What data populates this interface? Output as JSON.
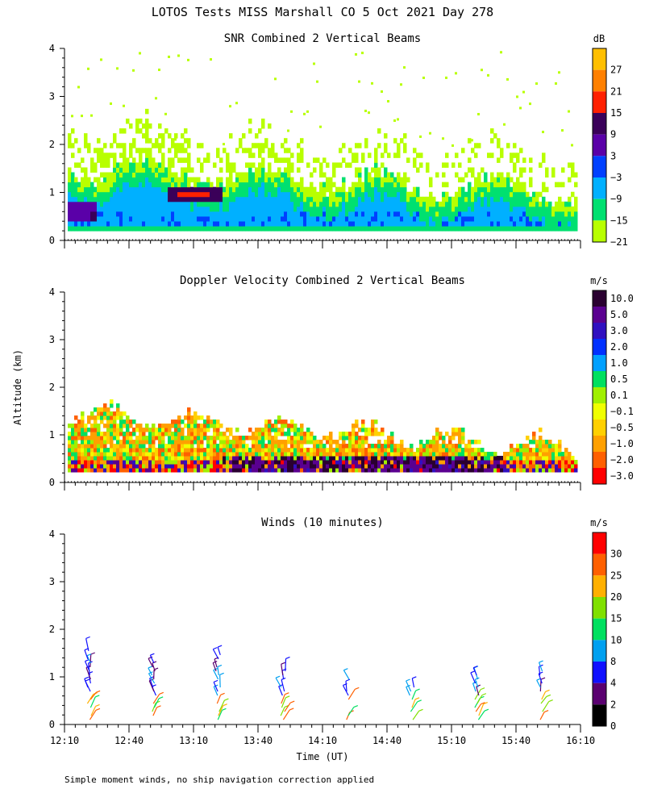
{
  "figure_title": "LOTOS Tests MISS Marshall CO   5 Oct 2021 Day 278",
  "footnote": "Simple moment winds, no ship navigation correction applied",
  "chart_data": [
    {
      "type": "heatmap",
      "title": "SNR Combined 2 Vertical Beams",
      "ylabel": "Altitude (km)",
      "ylim": [
        0,
        4
      ],
      "yticks": [
        "0",
        "1",
        "2",
        "3",
        "4"
      ],
      "colorbar": {
        "unit": "dB",
        "labels": [
          "27",
          "21",
          "15",
          "9",
          "3",
          "−3",
          "−9",
          "−15",
          "−21"
        ],
        "colors": [
          "#ffbf00",
          "#ff8000",
          "#ff2000",
          "#3a0059",
          "#5a00a8",
          "#0040ff",
          "#00b0ff",
          "#00e070",
          "#b8ff00"
        ]
      }
    },
    {
      "type": "heatmap",
      "title": "Doppler Velocity Combined 2 Vertical Beams",
      "ylabel": "Altitude (km)",
      "ylim": [
        0,
        4
      ],
      "yticks": [
        "0",
        "1",
        "2",
        "3",
        "4"
      ],
      "colorbar": {
        "unit": "m/s",
        "labels": [
          "10.0",
          "5.0",
          "3.0",
          "2.0",
          "1.0",
          "0.5",
          "0.1",
          "−0.1",
          "−0.5",
          "−1.0",
          "−2.0",
          "−3.0"
        ],
        "colors": [
          "#2a0030",
          "#5a0090",
          "#3010c0",
          "#0030ff",
          "#00a0ff",
          "#00e060",
          "#a0f000",
          "#f0ff00",
          "#ffd000",
          "#ffa000",
          "#ff6000",
          "#ff0000"
        ]
      }
    },
    {
      "type": "scatter",
      "title": "Winds (10 minutes)",
      "ylim": [
        0,
        4
      ],
      "yticks": [
        "0",
        "1",
        "2",
        "3",
        "4"
      ],
      "xlabel": "Time (UT)",
      "xticks": [
        "12:10",
        "12:40",
        "13:10",
        "13:40",
        "14:10",
        "14:40",
        "15:10",
        "15:40",
        "16:10"
      ],
      "profile_times": [
        "12:30",
        "13:00",
        "13:30",
        "14:00",
        "14:30",
        "15:00",
        "15:30",
        "16:00"
      ],
      "colorbar": {
        "unit": "m/s",
        "labels": [
          "30",
          "25",
          "20",
          "15",
          "10",
          "8",
          "4",
          "2",
          "0"
        ],
        "colors": [
          "#ff0000",
          "#ff6000",
          "#ffb000",
          "#80e000",
          "#00e060",
          "#00a0f0",
          "#1010ff",
          "#5a0070",
          "#000000"
        ]
      }
    }
  ]
}
